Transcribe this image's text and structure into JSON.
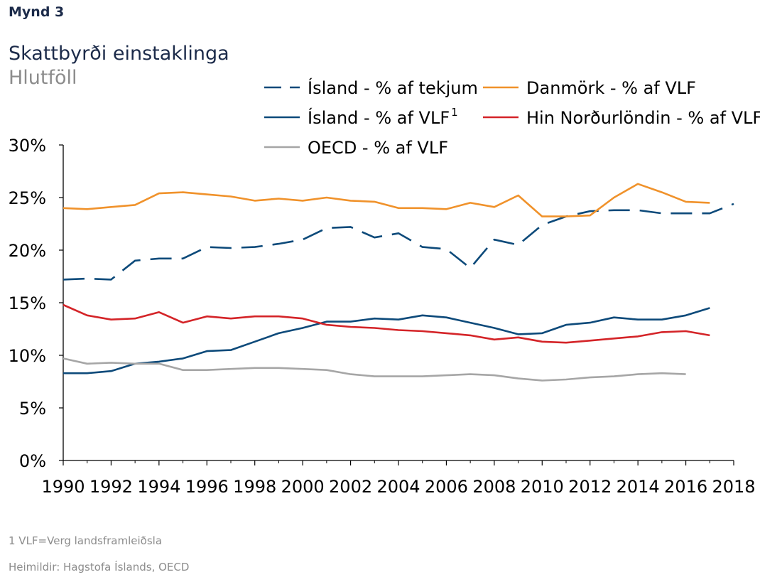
{
  "figure_label": "Mynd 3",
  "footnotes": {
    "note": "1 VLF=Verg landsframleiðsla",
    "source": "Heimildir: Hagstofa Íslands, OECD"
  },
  "chart_data": {
    "type": "line",
    "title": "Skattbyrði einstaklinga",
    "subtitle": "Hlutföll",
    "xlabel": "",
    "ylabel": "",
    "xlim": [
      1990,
      2018
    ],
    "ylim": [
      0,
      30
    ],
    "x_ticks": [
      "1990",
      "1992",
      "1994",
      "1996",
      "1998",
      "2000",
      "2002",
      "2004",
      "2006",
      "2008",
      "2010",
      "2012",
      "2014",
      "2016",
      "2018"
    ],
    "y_ticks": [
      "0%",
      "5%",
      "10%",
      "15%",
      "20%",
      "25%",
      "30%"
    ],
    "grid": false,
    "legend_position": "top-right",
    "series": [
      {
        "name": "Ísland - % af tekjum",
        "legend_sup": "",
        "color": "#0d4a7a",
        "dash": "long",
        "x": [
          1990,
          1991,
          1992,
          1993,
          1994,
          1995,
          1996,
          1997,
          1998,
          1999,
          2000,
          2001,
          2002,
          2003,
          2004,
          2005,
          2006,
          2007,
          2008,
          2009,
          2010,
          2011,
          2012,
          2013,
          2014,
          2015,
          2016,
          2017,
          2018
        ],
        "values": [
          17.2,
          17.3,
          17.2,
          19.0,
          19.2,
          19.2,
          20.3,
          20.2,
          20.3,
          20.6,
          21.0,
          22.1,
          22.2,
          21.2,
          21.6,
          20.3,
          20.1,
          18.3,
          21.0,
          20.5,
          22.4,
          23.2,
          23.7,
          23.8,
          23.8,
          23.5,
          23.5,
          23.5,
          24.4
        ]
      },
      {
        "name": "Ísland - % af VLF",
        "legend_sup": "1",
        "color": "#0d4a7a",
        "dash": "solid",
        "x": [
          1990,
          1991,
          1992,
          1993,
          1994,
          1995,
          1996,
          1997,
          1998,
          1999,
          2000,
          2001,
          2002,
          2003,
          2004,
          2005,
          2006,
          2007,
          2008,
          2009,
          2010,
          2011,
          2012,
          2013,
          2014,
          2015,
          2016,
          2017
        ],
        "values": [
          8.3,
          8.3,
          8.5,
          9.2,
          9.4,
          9.7,
          10.4,
          10.5,
          11.3,
          12.1,
          12.6,
          13.2,
          13.2,
          13.5,
          13.4,
          13.8,
          13.6,
          13.1,
          12.6,
          12.0,
          12.1,
          12.9,
          13.1,
          13.6,
          13.4,
          13.4,
          13.8,
          14.5
        ]
      },
      {
        "name": "OECD - % af VLF",
        "legend_sup": "",
        "color": "#a6a6a6",
        "dash": "solid",
        "x": [
          1990,
          1991,
          1992,
          1993,
          1994,
          1995,
          1996,
          1997,
          1998,
          1999,
          2000,
          2001,
          2002,
          2003,
          2004,
          2005,
          2006,
          2007,
          2008,
          2009,
          2010,
          2011,
          2012,
          2013,
          2014,
          2015,
          2016
        ],
        "values": [
          9.7,
          9.2,
          9.3,
          9.2,
          9.2,
          8.6,
          8.6,
          8.7,
          8.8,
          8.8,
          8.7,
          8.6,
          8.2,
          8.0,
          8.0,
          8.0,
          8.1,
          8.2,
          8.1,
          7.8,
          7.6,
          7.7,
          7.9,
          8.0,
          8.2,
          8.3,
          8.2
        ]
      },
      {
        "name": "Danmörk - % af VLF",
        "legend_sup": "",
        "color": "#f0922b",
        "dash": "solid",
        "x": [
          1990,
          1991,
          1992,
          1993,
          1994,
          1995,
          1996,
          1997,
          1998,
          1999,
          2000,
          2001,
          2002,
          2003,
          2004,
          2005,
          2006,
          2007,
          2008,
          2009,
          2010,
          2011,
          2012,
          2013,
          2014,
          2015,
          2016,
          2017
        ],
        "values": [
          24.0,
          23.9,
          24.1,
          24.3,
          25.4,
          25.5,
          25.3,
          25.1,
          24.7,
          24.9,
          24.7,
          25.0,
          24.7,
          24.6,
          24.0,
          24.0,
          23.9,
          24.5,
          24.1,
          25.2,
          23.2,
          23.2,
          23.3,
          25.0,
          26.3,
          25.5,
          24.6,
          24.5
        ]
      },
      {
        "name": "Hin Norðurlöndin - % af VLF",
        "legend_sup": "",
        "color": "#d42428",
        "dash": "solid",
        "x": [
          1990,
          1991,
          1992,
          1993,
          1994,
          1995,
          1996,
          1997,
          1998,
          1999,
          2000,
          2001,
          2002,
          2003,
          2004,
          2005,
          2006,
          2007,
          2008,
          2009,
          2010,
          2011,
          2012,
          2013,
          2014,
          2015,
          2016,
          2017
        ],
        "values": [
          14.8,
          13.8,
          13.4,
          13.5,
          14.1,
          13.1,
          13.7,
          13.5,
          13.7,
          13.7,
          13.5,
          12.9,
          12.7,
          12.6,
          12.4,
          12.3,
          12.1,
          11.9,
          11.5,
          11.7,
          11.3,
          11.2,
          11.4,
          11.6,
          11.8,
          12.2,
          12.3,
          11.9
        ]
      }
    ]
  }
}
